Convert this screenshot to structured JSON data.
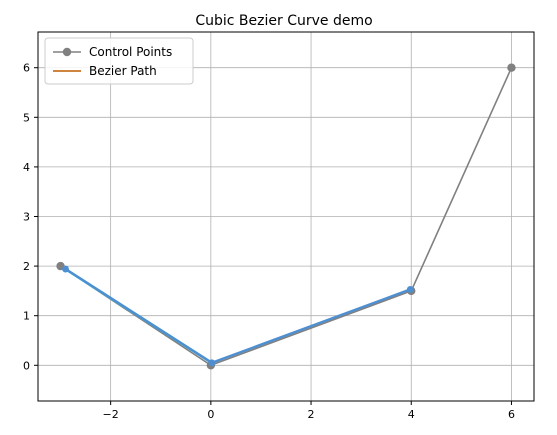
{
  "chart_data": {
    "type": "line",
    "title": "Cubic Bezier Curve demo",
    "xlabel": "",
    "ylabel": "",
    "xlim": [
      -3.45,
      6.45
    ],
    "ylim": [
      -0.72,
      6.72
    ],
    "xticks": [
      -2,
      0,
      2,
      4,
      6
    ],
    "xtick_labels": [
      "−2",
      "0",
      "2",
      "4",
      "6"
    ],
    "yticks": [
      0,
      1,
      2,
      3,
      4,
      5,
      6
    ],
    "ytick_labels": [
      "0",
      "1",
      "2",
      "3",
      "4",
      "5",
      "6"
    ],
    "grid": true,
    "legend_position": "top-left",
    "series": [
      {
        "name": "Control Points",
        "color": "#808080",
        "marker": "circle",
        "x": [
          -3,
          0,
          4,
          6
        ],
        "y": [
          2,
          0,
          1.5,
          6
        ]
      },
      {
        "name": "Bezier Path",
        "color": "#cd853f",
        "marker": "none",
        "x": [],
        "y": []
      }
    ],
    "overlay_segments": [
      {
        "color": "#00e5ff",
        "x": [
          -2.95,
          0.05
        ],
        "y": [
          1.97,
          0.03
        ],
        "width": 2.4
      },
      {
        "color": "#4d8fd1",
        "x": [
          -2.9,
          0.02,
          3.98
        ],
        "y": [
          1.94,
          0.05,
          1.53
        ],
        "width": 2.4
      }
    ],
    "extra_points": [
      {
        "color": "#4d8fd1",
        "x": -2.9,
        "y": 1.94
      },
      {
        "color": "#4d8fd1",
        "x": 0.02,
        "y": 0.05
      },
      {
        "color": "#4d8fd1",
        "x": 3.98,
        "y": 1.53
      }
    ]
  }
}
